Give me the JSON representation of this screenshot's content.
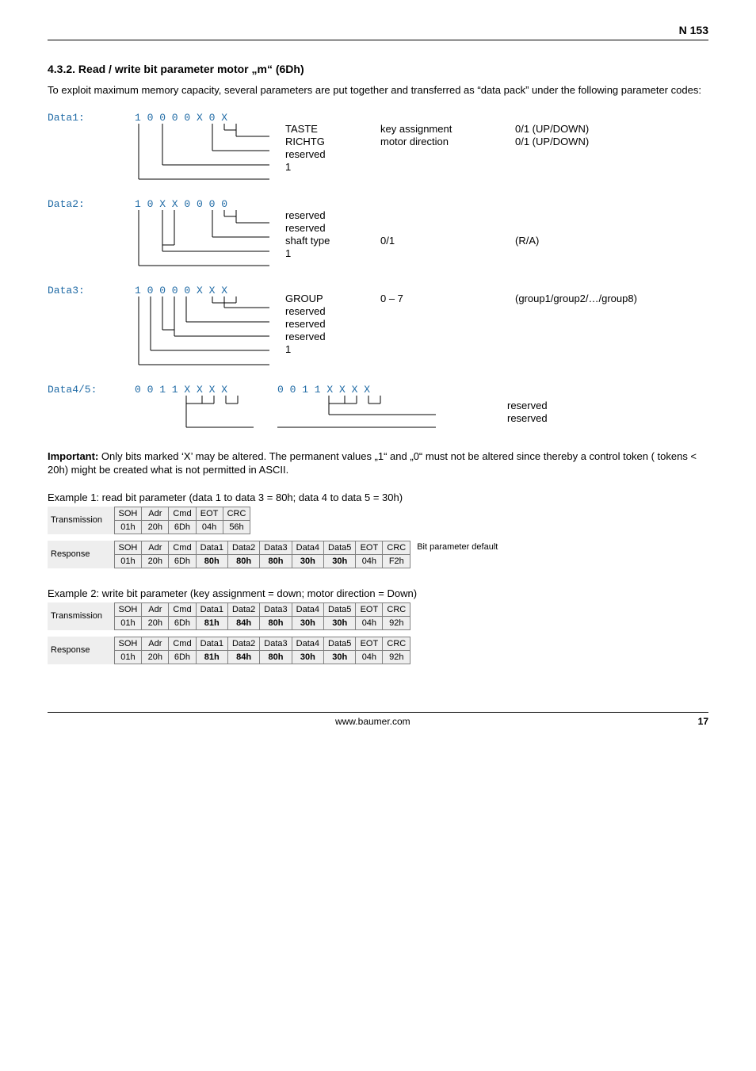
{
  "header": {
    "code": "N 153"
  },
  "section": {
    "title": "4.3.2. Read / write bit parameter motor „m“ (6Dh)",
    "lead": "To exploit maximum memory capacity, several parameters are put together and transferred as “data pack” under the following parameter codes:"
  },
  "data1": {
    "label": "Data1:",
    "bits": "1 0 0 0 0 X 0 X",
    "lines": [
      {
        "k": "TASTE",
        "v": "key assignment",
        "e": "0/1 (UP/DOWN)"
      },
      {
        "k": "RICHTG",
        "v": "motor direction",
        "e": "0/1 (UP/DOWN)"
      },
      {
        "k": "reserved",
        "v": "",
        "e": ""
      },
      {
        "k": "1",
        "v": "",
        "e": ""
      }
    ]
  },
  "data2": {
    "label": "Data2:",
    "bits": "1 0 X X 0 0 0 0",
    "lines": [
      {
        "k": "reserved",
        "v": "",
        "e": ""
      },
      {
        "k": "reserved",
        "v": "",
        "e": ""
      },
      {
        "k": "shaft type",
        "v": "0/1",
        "e": "(R/A)"
      },
      {
        "k": "1",
        "v": "",
        "e": ""
      }
    ]
  },
  "data3": {
    "label": "Data3:",
    "bits": "1 0 0 0 0 X X X",
    "lines": [
      {
        "k": "GROUP",
        "v": "0 – 7",
        "e": "(group1/group2/…/group8)"
      },
      {
        "k": "reserved",
        "v": "",
        "e": ""
      },
      {
        "k": "reserved",
        "v": "",
        "e": ""
      },
      {
        "k": "reserved",
        "v": "",
        "e": ""
      },
      {
        "k": "1",
        "v": "",
        "e": ""
      }
    ]
  },
  "data45": {
    "label": "Data4/5:",
    "bitsA": "0 0 1 1 X X X X",
    "bitsB": "0 0 1 1 X X X X",
    "lines": [
      {
        "k": "reserved"
      },
      {
        "k": "reserved"
      }
    ]
  },
  "important": "Important: Only bits marked ‘X’ may be altered. The permanent values „1“ and „0“ must not be altered since thereby a control token ( tokens < 20h) might be created what is not permitted in ASCII.",
  "important_label": "Important:",
  "important_rest": " Only bits marked ‘X’ may be altered. The permanent values „1“ and „0“ must not be altered since thereby a control token ( tokens < 20h) might be created what is not permitted in ASCII.",
  "ex1": {
    "title": "Example 1: read bit parameter (data 1 to data 3 = 80h;   data 4 to data 5 = 30h)",
    "trans_label": "Transmission",
    "resp_label": "Response",
    "bitnote": "Bit parameter  default",
    "trans_head": [
      "SOH",
      "Adr",
      "Cmd",
      "EOT",
      "CRC"
    ],
    "trans_vals": [
      "01h",
      "20h",
      "6Dh",
      "04h",
      "56h"
    ],
    "resp_head": [
      "SOH",
      "Adr",
      "Cmd",
      "Data1",
      "Data2",
      "Data3",
      "Data4",
      "Data5",
      "EOT",
      "CRC"
    ],
    "resp_vals": [
      "01h",
      "20h",
      "6Dh",
      "80h",
      "80h",
      "80h",
      "30h",
      "30h",
      "04h",
      "F2h"
    ],
    "resp_bold": [
      false,
      false,
      false,
      true,
      true,
      true,
      true,
      true,
      false,
      false
    ]
  },
  "ex2": {
    "title": "Example 2: write bit parameter (key assignment = down; motor direction = Down)",
    "trans_label": "Transmission",
    "resp_label": "Response",
    "trans_head": [
      "SOH",
      "Adr",
      "Cmd",
      "Data1",
      "Data2",
      "Data3",
      "Data4",
      "Data5",
      "EOT",
      "CRC"
    ],
    "trans_vals": [
      "01h",
      "20h",
      "6Dh",
      "81h",
      "84h",
      "80h",
      "30h",
      "30h",
      "04h",
      "92h"
    ],
    "trans_bold": [
      false,
      false,
      false,
      true,
      true,
      true,
      true,
      true,
      false,
      false
    ],
    "resp_head": [
      "SOH",
      "Adr",
      "Cmd",
      "Data1",
      "Data2",
      "Data3",
      "Data4",
      "Data5",
      "EOT",
      "CRC"
    ],
    "resp_vals": [
      "01h",
      "20h",
      "6Dh",
      "81h",
      "84h",
      "80h",
      "30h",
      "30h",
      "04h",
      "92h"
    ],
    "resp_bold": [
      false,
      false,
      false,
      true,
      true,
      true,
      true,
      true,
      false,
      false
    ]
  },
  "footer": {
    "site": "www.baumer.com",
    "page": "17"
  }
}
